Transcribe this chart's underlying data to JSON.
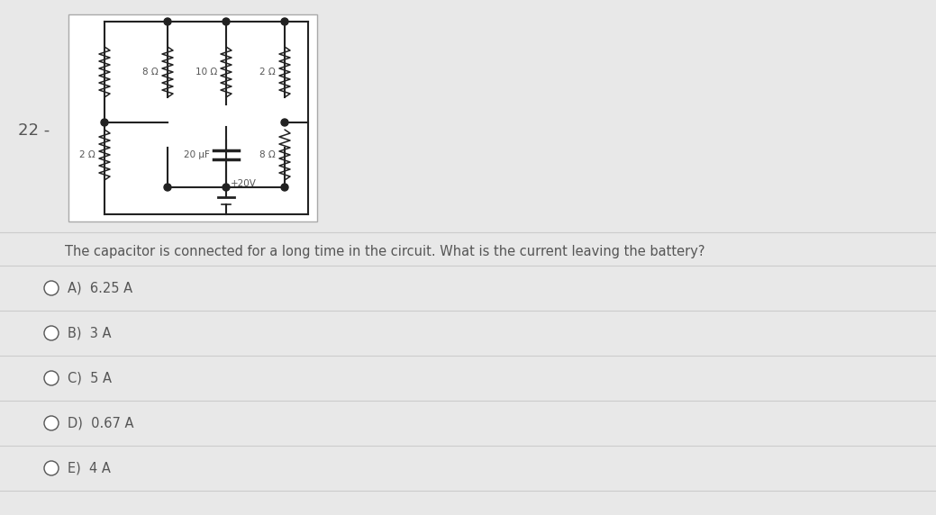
{
  "question_number": "22 -",
  "question_text": "The capacitor is connected for a long time in the circuit. What is the current leaving the battery?",
  "choices": [
    "A)  6.25 A",
    "B)  3 A",
    "C)  5 A",
    "D)  0.67 A",
    "E)  4 A"
  ],
  "labels": {
    "r_top_left": "8 Ω",
    "r_top_center": "10 Ω",
    "r_top_right": "2 Ω",
    "r_bot_left": "2 Ω",
    "r_bot_right": "8 Ω",
    "capacitor": "20 μF",
    "battery": "+20V"
  },
  "bg_color": "#e8e8e8",
  "circuit_bg": "#ffffff",
  "circuit_border": "#aaaaaa",
  "text_color": "#555555",
  "line_color": "#222222",
  "divider_color": "#cccccc",
  "choice_bg_odd": "#ebebeb",
  "choice_bg_even": "#e0e0e0"
}
